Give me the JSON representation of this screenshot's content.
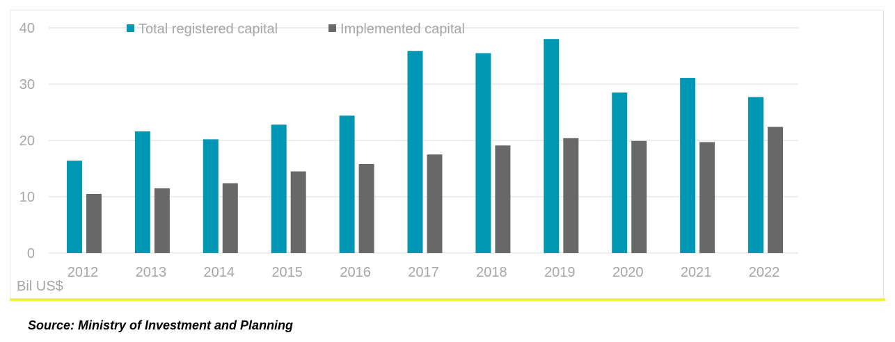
{
  "source_note": "Source: Ministry of Investment and Planning",
  "colors": {
    "series_1": "#0097b5",
    "series_2": "#686868",
    "grid": "#d9d9d9",
    "text": "#a6a6a6",
    "accent_rule": "#f2f239"
  },
  "chart_data": {
    "type": "bar",
    "title": "",
    "xlabel": "",
    "ylabel": "Bil US$",
    "ylim": [
      0,
      40
    ],
    "yticks": [
      0,
      10,
      20,
      30,
      40
    ],
    "grid": true,
    "legend_position": "top-left",
    "categories": [
      "2012",
      "2013",
      "2014",
      "2015",
      "2016",
      "2017",
      "2018",
      "2019",
      "2020",
      "2021",
      "2022"
    ],
    "series": [
      {
        "name": "Total registered capital",
        "values": [
          16.4,
          21.6,
          20.2,
          22.8,
          24.4,
          35.9,
          35.5,
          38.0,
          28.5,
          31.1,
          27.7
        ]
      },
      {
        "name": "Implemented capital",
        "values": [
          10.5,
          11.5,
          12.4,
          14.5,
          15.8,
          17.5,
          19.1,
          20.4,
          19.9,
          19.7,
          22.4
        ]
      }
    ]
  }
}
